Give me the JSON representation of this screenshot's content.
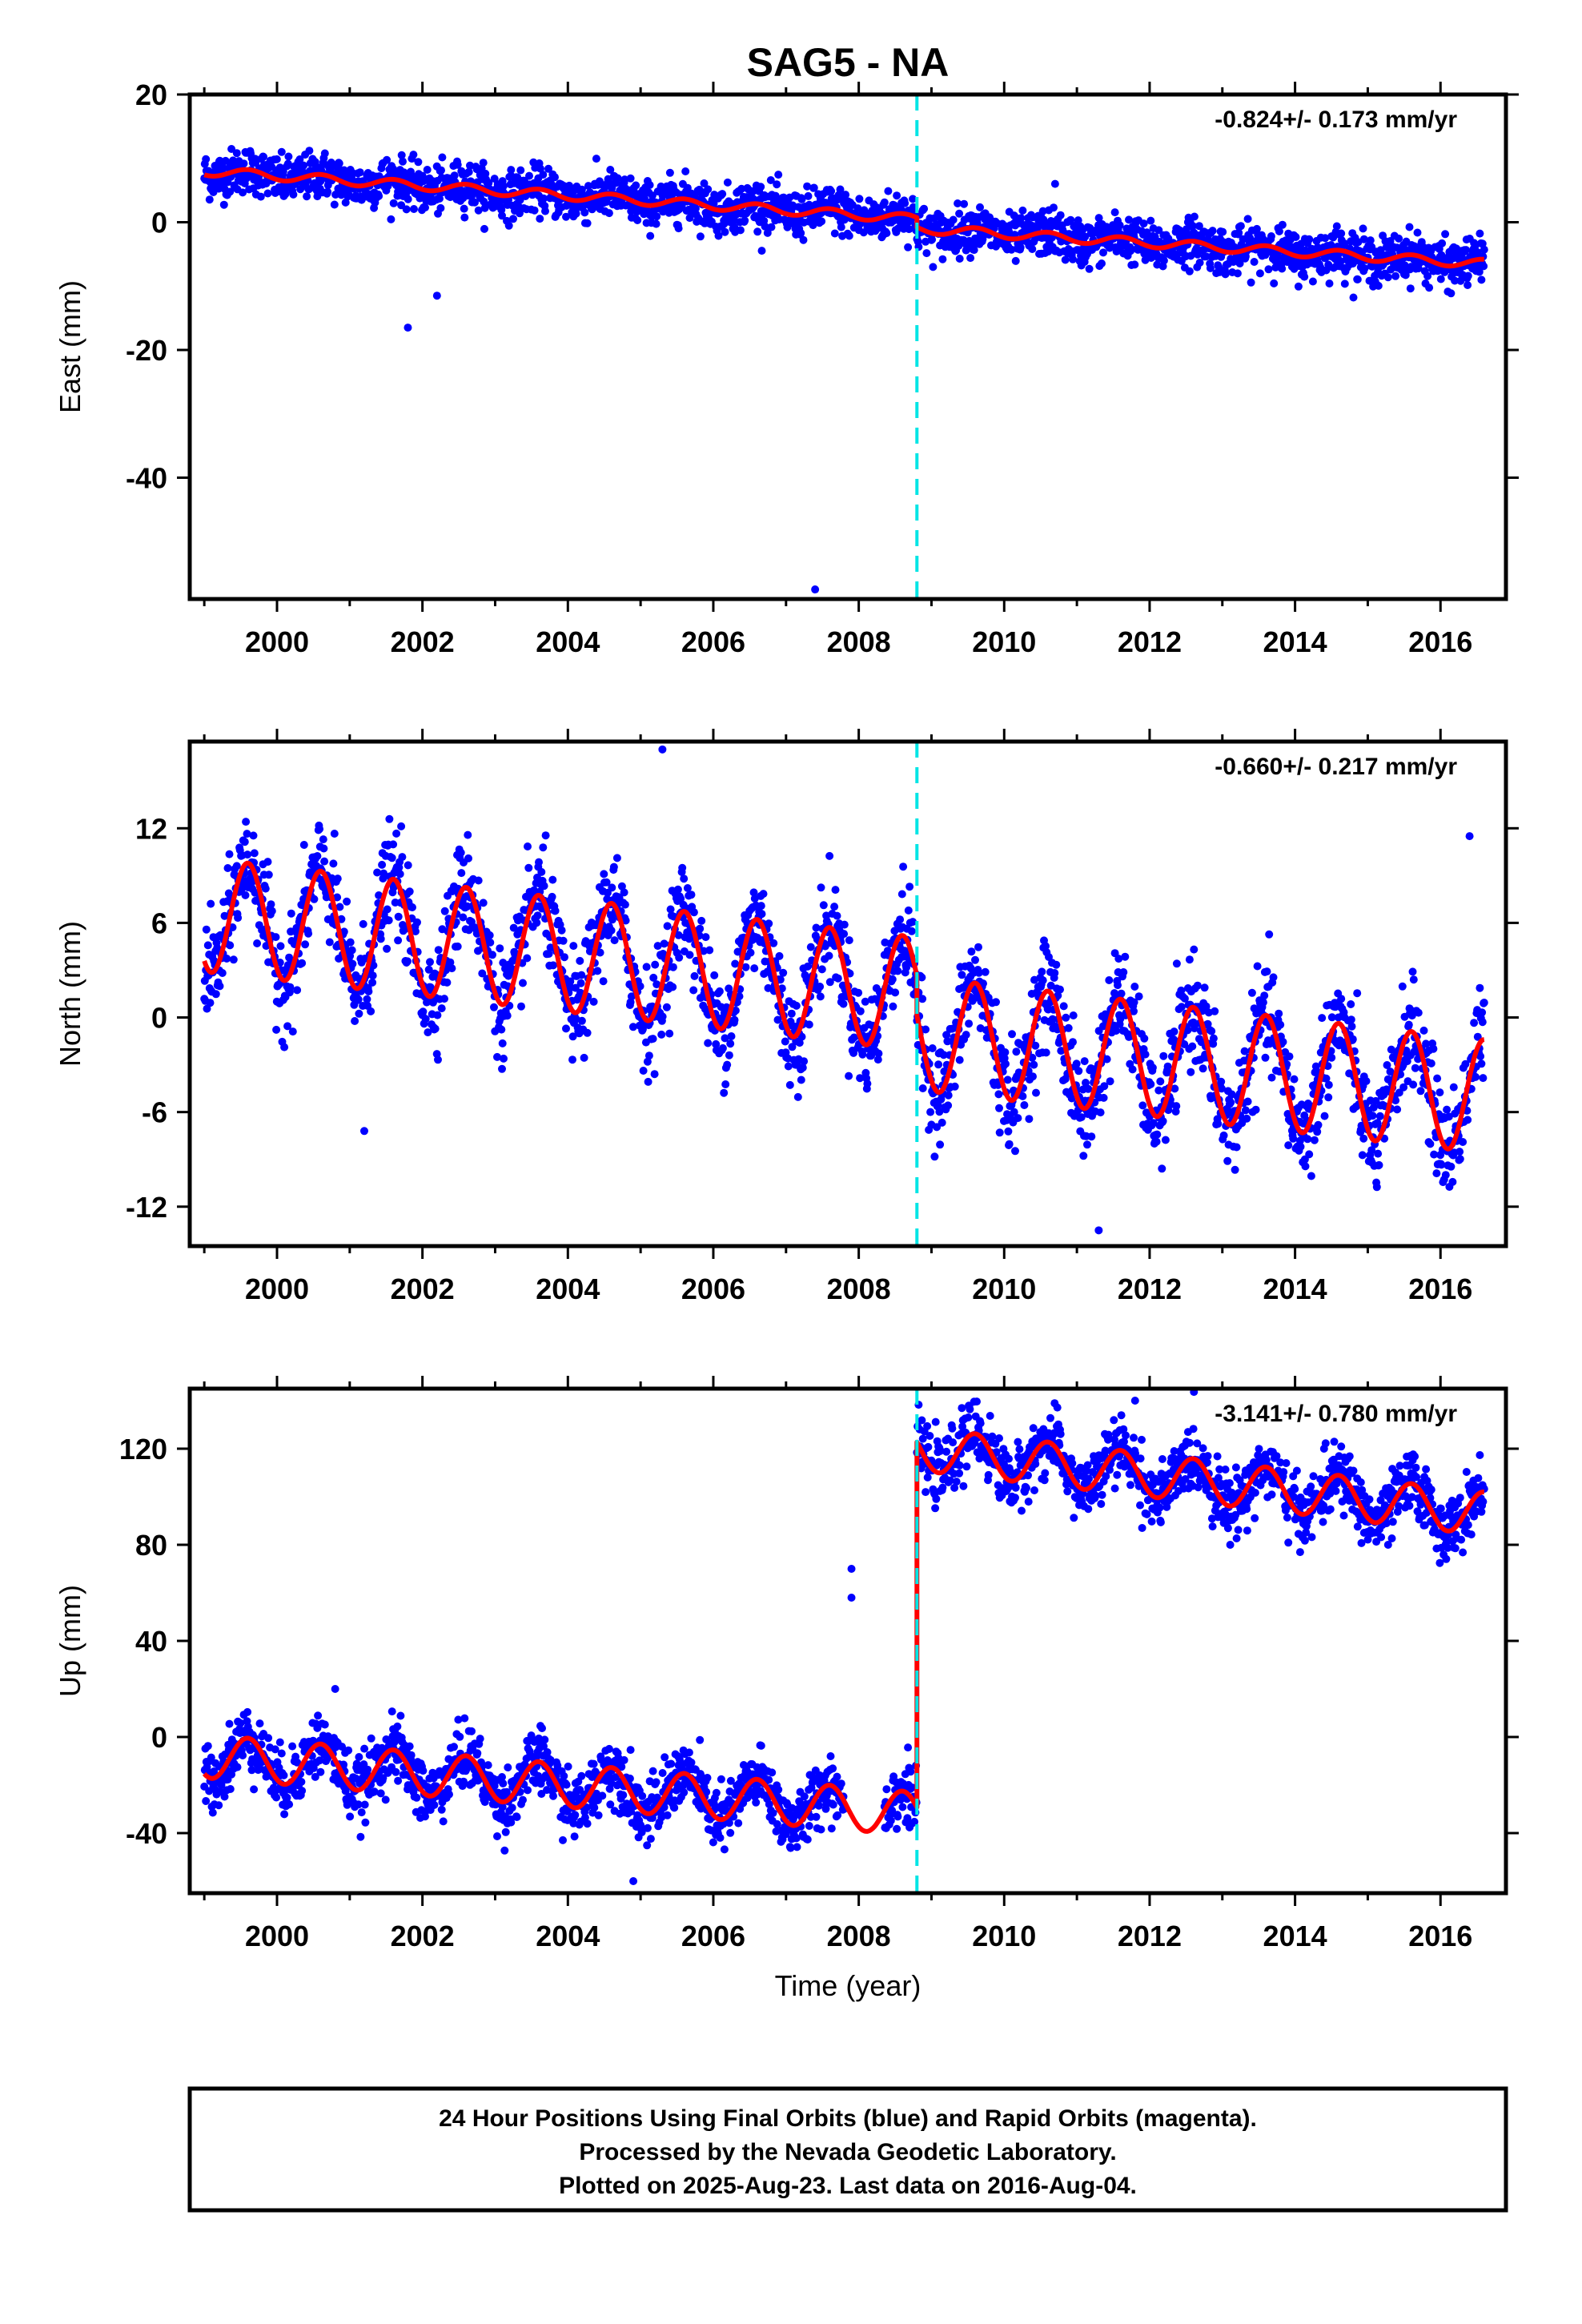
{
  "title": "SAG5 - NA",
  "xlabel": "Time (year)",
  "footer": {
    "lines": [
      "24 Hour Positions Using Final Orbits (blue) and Rapid Orbits (magenta).",
      "Processed by the Nevada Geodetic Laboratory.",
      "Plotted on 2025-Aug-23. Last data on 2016-Aug-04."
    ]
  },
  "chart_data": [
    {
      "type": "scatter",
      "ylabel": "East (mm)",
      "rate_label": "-0.824+/- 0.173 mm/yr",
      "xlim": [
        1998.8,
        2016.9
      ],
      "ylim": [
        -59,
        20
      ],
      "xticks": [
        2000,
        2002,
        2004,
        2006,
        2008,
        2010,
        2012,
        2014,
        2016
      ],
      "yticks": [
        20,
        0,
        -20,
        -40
      ],
      "break_line_x": 2008.8,
      "colors": {
        "points": "#0000ff",
        "model": "#ff0000",
        "break": "#00e5e5"
      },
      "model": {
        "x": [
          1999.0,
          2008.8,
          2008.8,
          2016.6
        ],
        "y": [
          8,
          0.5,
          -1,
          -6.5
        ],
        "seasonal_amp": 0.7
      },
      "outliers": [
        {
          "x": 2007.4,
          "y": -57.5
        },
        {
          "x": 2001.8,
          "y": -16.5
        },
        {
          "x": 2002.2,
          "y": -11.5
        },
        {
          "x": 2010.7,
          "y": 6
        }
      ]
    },
    {
      "type": "scatter",
      "ylabel": "North (mm)",
      "rate_label": "-0.660+/- 0.217 mm/yr",
      "xlim": [
        1998.8,
        2016.9
      ],
      "ylim": [
        -14.5,
        17.5
      ],
      "xticks": [
        2000,
        2002,
        2004,
        2006,
        2008,
        2010,
        2012,
        2014,
        2016
      ],
      "yticks": [
        12,
        6,
        0,
        -6,
        -12
      ],
      "break_line_x": 2008.8,
      "colors": {
        "points": "#0000ff",
        "model": "#ff0000",
        "break": "#00e5e5"
      },
      "model": {
        "x": [
          1999.0,
          2008.8,
          2008.8,
          2016.6
        ],
        "y": [
          6.5,
          1.5,
          -1,
          -5
        ],
        "seasonal_amp": 3.6
      },
      "outliers": [
        {
          "x": 2005.3,
          "y": 17
        },
        {
          "x": 2001.2,
          "y": -7.2
        },
        {
          "x": 2011.3,
          "y": -13.5
        },
        {
          "x": 2016.4,
          "y": 11.5
        }
      ]
    },
    {
      "type": "scatter",
      "ylabel": "Up (mm)",
      "rate_label": "-3.141+/- 0.780 mm/yr",
      "xlim": [
        1998.8,
        2016.9
      ],
      "ylim": [
        -65,
        145
      ],
      "xticks": [
        2000,
        2002,
        2004,
        2006,
        2008,
        2010,
        2012,
        2014,
        2016
      ],
      "yticks": [
        120,
        80,
        40,
        0,
        -40
      ],
      "break_line_x": 2008.8,
      "colors": {
        "points": "#0000ff",
        "model": "#ff0000",
        "break": "#00e5e5"
      },
      "model": {
        "x": [
          1999.0,
          2008.8,
          2008.8,
          2016.6
        ],
        "y": [
          -8,
          -32,
          120,
          93
        ],
        "seasonal_amp": 9
      },
      "outliers": [
        {
          "x": 2007.9,
          "y": 70
        },
        {
          "x": 2007.9,
          "y": 58
        },
        {
          "x": 2004.9,
          "y": -60
        },
        {
          "x": 2011.8,
          "y": 140
        },
        {
          "x": 2000.8,
          "y": 20
        }
      ]
    }
  ]
}
